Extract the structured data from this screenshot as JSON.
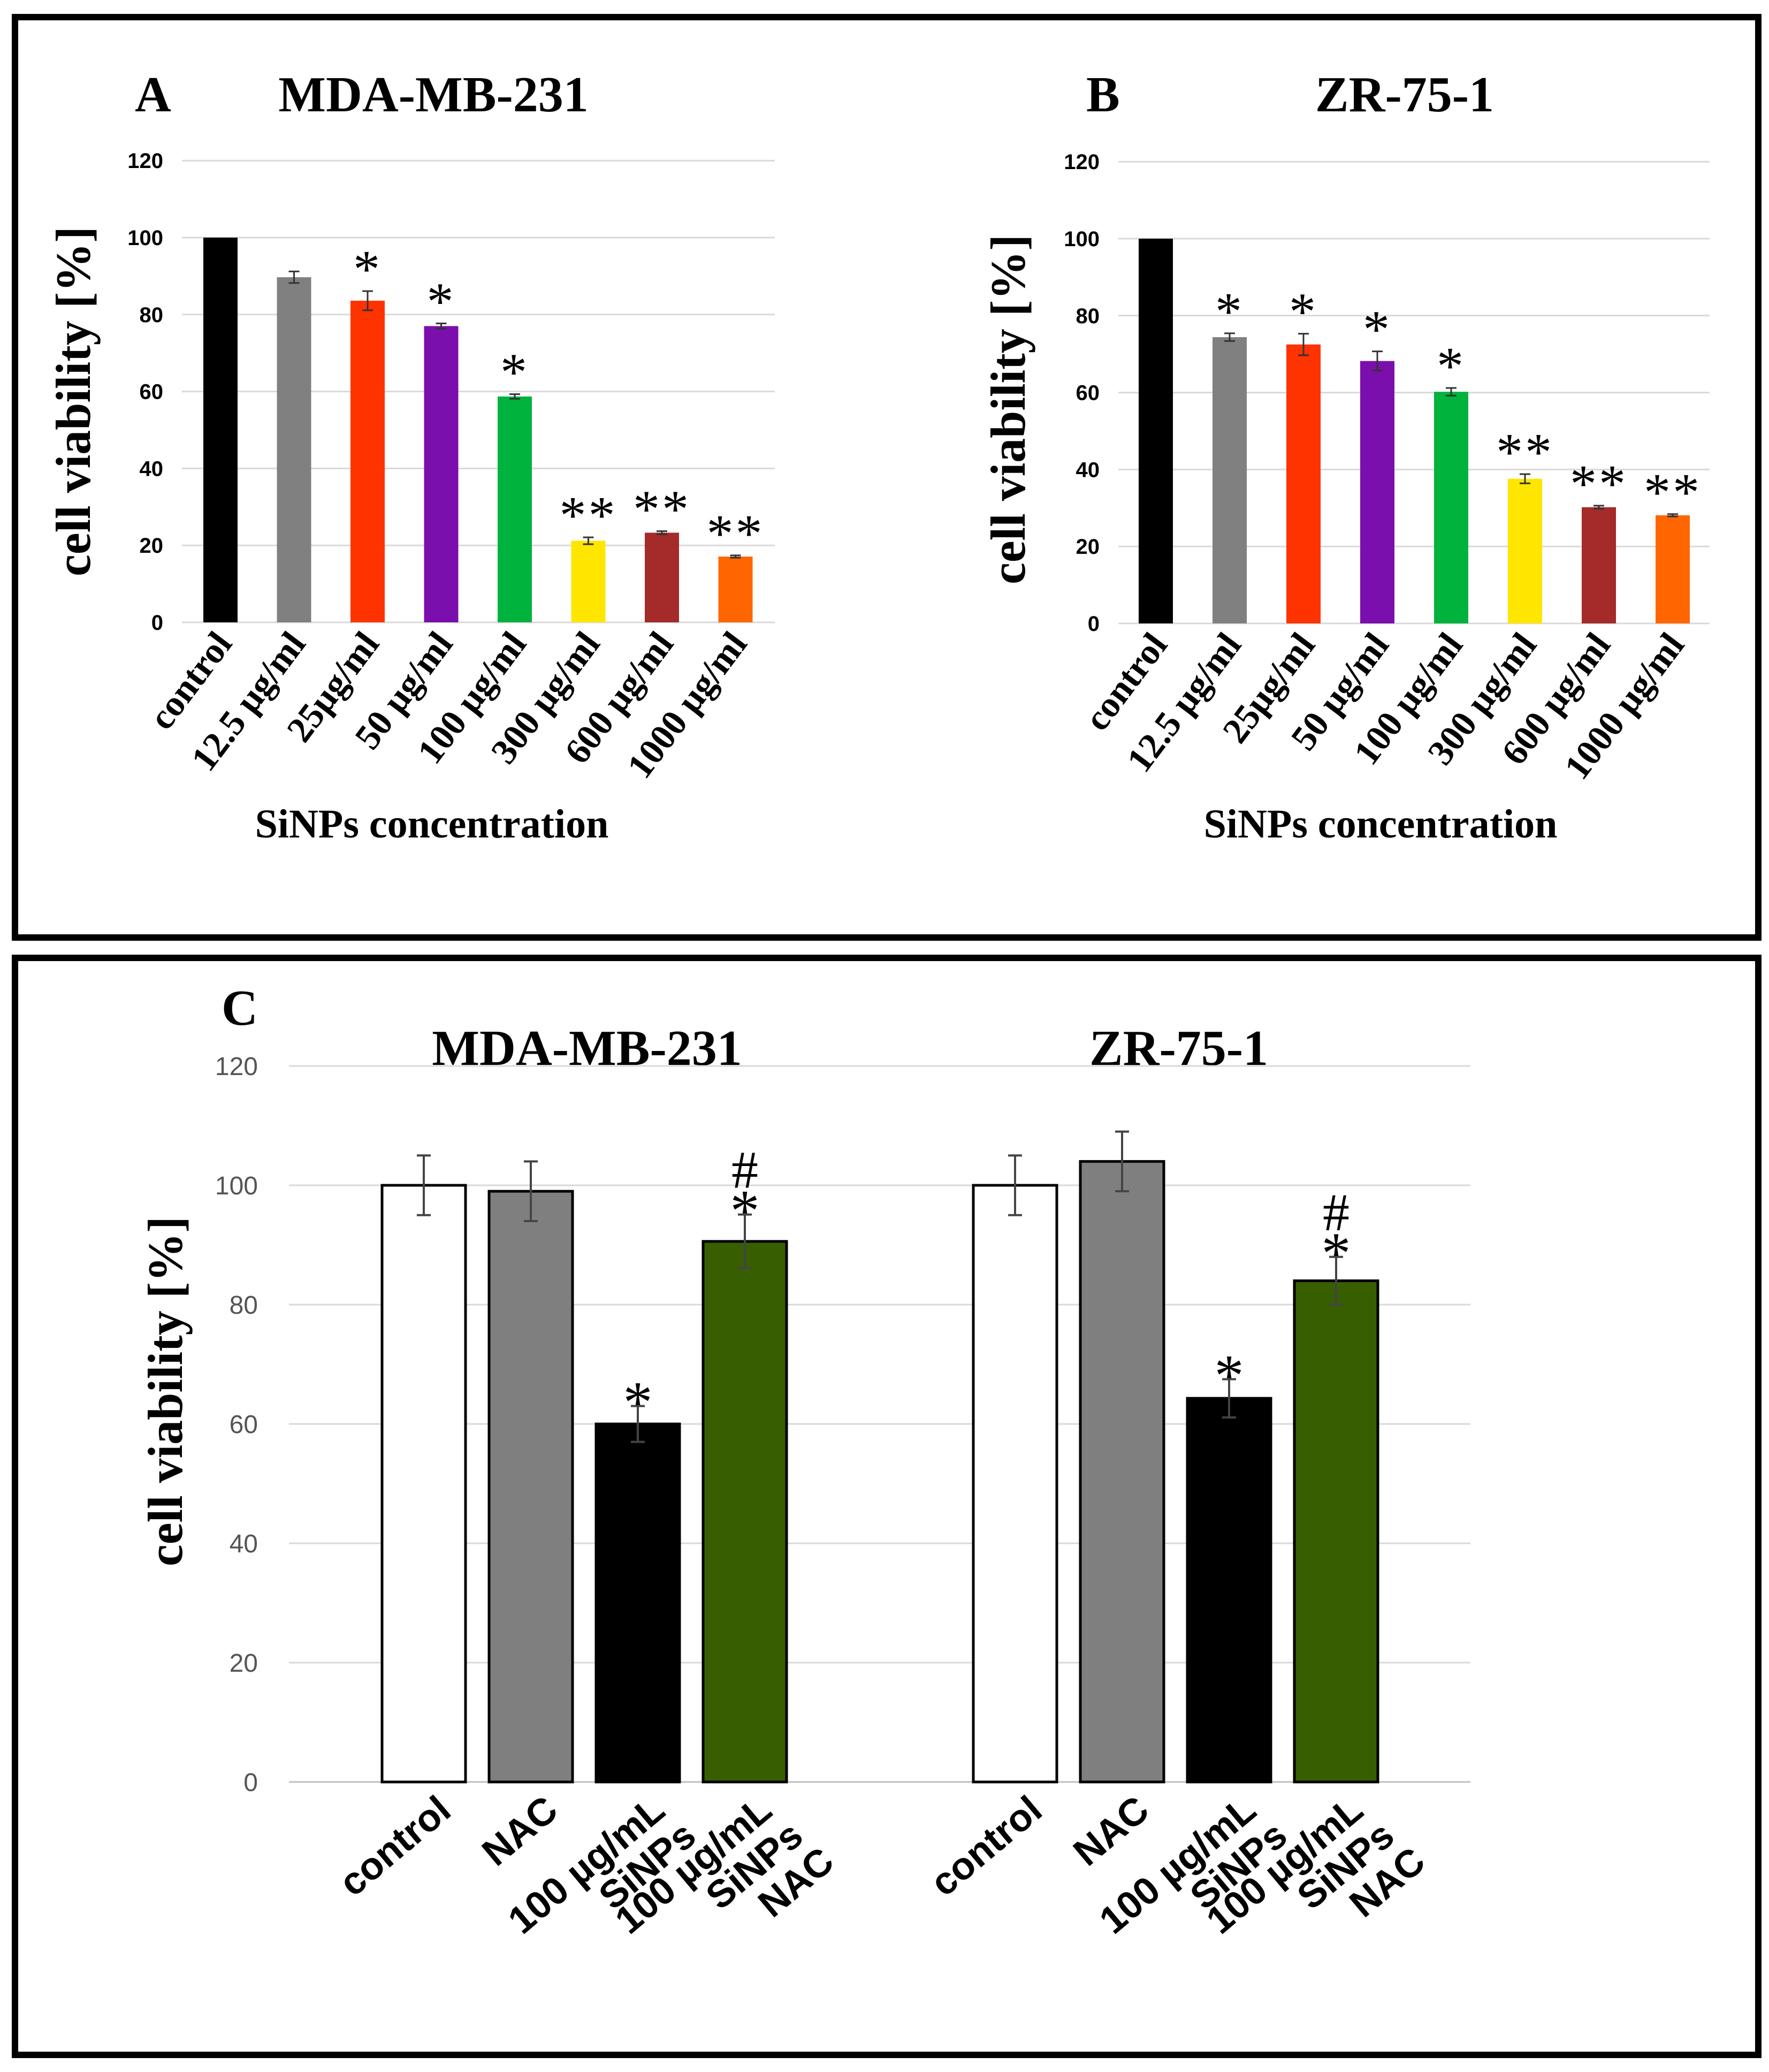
{
  "chart_data": [
    {
      "panel": "A",
      "type": "bar",
      "title": "MDA-MB-231",
      "ylabel": "cell viability [%]",
      "xlabel": "SiNPs concentration",
      "ylim": [
        0,
        120
      ],
      "yticks": [
        "0",
        "20",
        "40",
        "60",
        "80",
        "100",
        "120"
      ],
      "grid": true,
      "categories": [
        "control",
        "12.5 µg/ml",
        "25µg/ml",
        "50 µg/ml",
        "100 µg/ml",
        "300 µg/ml",
        "600 µg/ml",
        "1000 µg/ml"
      ],
      "values": [
        100,
        89.7,
        83.6,
        77,
        58.7,
        21.2,
        23.3,
        17.1
      ],
      "errors": [
        0,
        1.5,
        2.5,
        0.7,
        0.6,
        0.9,
        0.4,
        0.3
      ],
      "colors": [
        "#000000",
        "#808080",
        "#ff3300",
        "#7b0fad",
        "#00b33c",
        "#ffe600",
        "#a52a2a",
        "#ff6600"
      ],
      "annotations": [
        "",
        "",
        "*",
        "*",
        "*",
        "**",
        "**",
        "**"
      ]
    },
    {
      "panel": "B",
      "type": "bar",
      "title": "ZR-75-1",
      "ylabel": "cell viability [%]",
      "xlabel": "SiNPs concentration",
      "ylim": [
        0,
        120
      ],
      "yticks": [
        "0",
        "20",
        "40",
        "60",
        "80",
        "100",
        "120"
      ],
      "grid": true,
      "categories": [
        "control",
        "12.5 µg/ml",
        "25µg/ml",
        "50 µg/ml",
        "100 µg/ml",
        "300 µg/ml",
        "600 µg/ml",
        "1000 µg/ml"
      ],
      "values": [
        100,
        74.4,
        72.5,
        68.2,
        60.2,
        37.6,
        30.2,
        28.1
      ],
      "errors": [
        0,
        1.0,
        2.8,
        2.5,
        1.0,
        1.2,
        0.4,
        0.3
      ],
      "colors": [
        "#000000",
        "#808080",
        "#ff3300",
        "#7b0fad",
        "#00b33c",
        "#ffe600",
        "#a52a2a",
        "#ff6600"
      ],
      "annotations": [
        "",
        "*",
        "*",
        "*",
        "*",
        "**",
        "**",
        "**"
      ]
    },
    {
      "panel": "C",
      "type": "bar",
      "ylabel": "cell viability [%]",
      "ylim": [
        0,
        120
      ],
      "yticks": [
        "0",
        "20",
        "40",
        "60",
        "80",
        "100",
        "120"
      ],
      "grid": true,
      "groups": [
        {
          "title": "MDA-MB-231",
          "categories": [
            [
              "control"
            ],
            [
              "NAC"
            ],
            [
              "100 µg/mL",
              "SiNPs"
            ],
            [
              "100 µg/mL",
              "SiNPs",
              "NAC"
            ]
          ],
          "values": [
            100,
            99,
            60,
            90.6
          ],
          "errors": [
            5,
            5,
            3,
            4.5
          ],
          "colors": [
            "#ffffff",
            "#7f7f7f",
            "#000000",
            "#375f00"
          ],
          "annotations": [
            [],
            [],
            [
              "*"
            ],
            [
              "*",
              "#"
            ]
          ]
        },
        {
          "title": "ZR-75-1",
          "categories": [
            [
              "control"
            ],
            [
              "NAC"
            ],
            [
              "100 µg/mL",
              "SiNPs"
            ],
            [
              "100 µg/mL",
              "SiNPs",
              "NAC"
            ]
          ],
          "values": [
            100,
            104,
            64.3,
            84
          ],
          "errors": [
            5,
            5,
            3.2,
            4
          ],
          "colors": [
            "#ffffff",
            "#7f7f7f",
            "#000000",
            "#375f00"
          ],
          "annotations": [
            [],
            [],
            [
              "*"
            ],
            [
              "*",
              "#"
            ]
          ]
        }
      ]
    }
  ]
}
